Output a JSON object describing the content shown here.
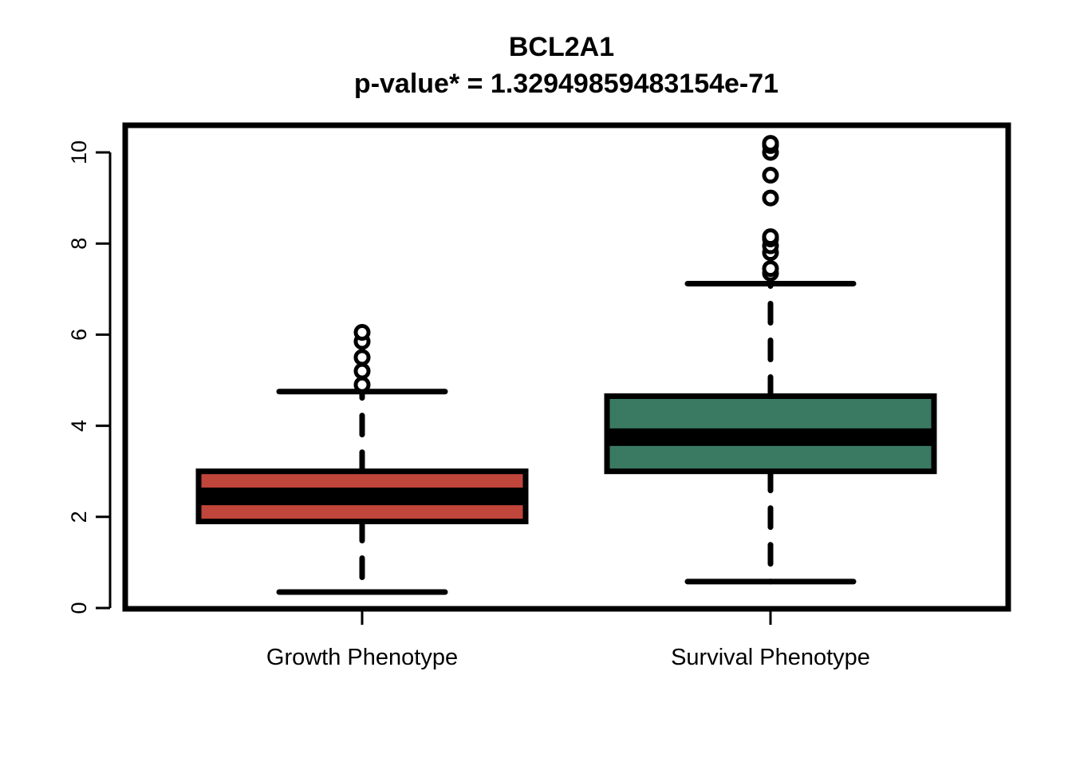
{
  "chart_data": {
    "type": "boxplot",
    "title": "BCL2A1",
    "subtitle": "p-value* = 1.32949859483154e-71",
    "xlabel": "",
    "ylabel": "",
    "ylim": [
      0,
      10.6
    ],
    "yticks": [
      0,
      2,
      4,
      6,
      8,
      10
    ],
    "ytick_labels": [
      "0",
      "2",
      "4",
      "6",
      "8",
      "10"
    ],
    "grid": false,
    "legend": "none",
    "categories": [
      "Growth Phenotype",
      "Survival Phenotype"
    ],
    "boxes": [
      {
        "category": "Growth Phenotype",
        "color": "#C0453A",
        "whisker_low": 0.35,
        "q1": 1.9,
        "median": 2.45,
        "q3": 3.0,
        "whisker_high": 4.75,
        "outliers": [
          4.9,
          5.2,
          5.5,
          5.85,
          6.05
        ]
      },
      {
        "category": "Survival Phenotype",
        "color": "#3A7A62",
        "whisker_low": 0.58,
        "q1": 3.0,
        "median": 3.75,
        "q3": 4.65,
        "whisker_high": 7.12,
        "outliers": [
          7.35,
          7.45,
          7.8,
          7.95,
          8.1,
          8.15,
          9.0,
          9.5,
          10.0,
          10.15,
          10.2
        ]
      }
    ]
  }
}
